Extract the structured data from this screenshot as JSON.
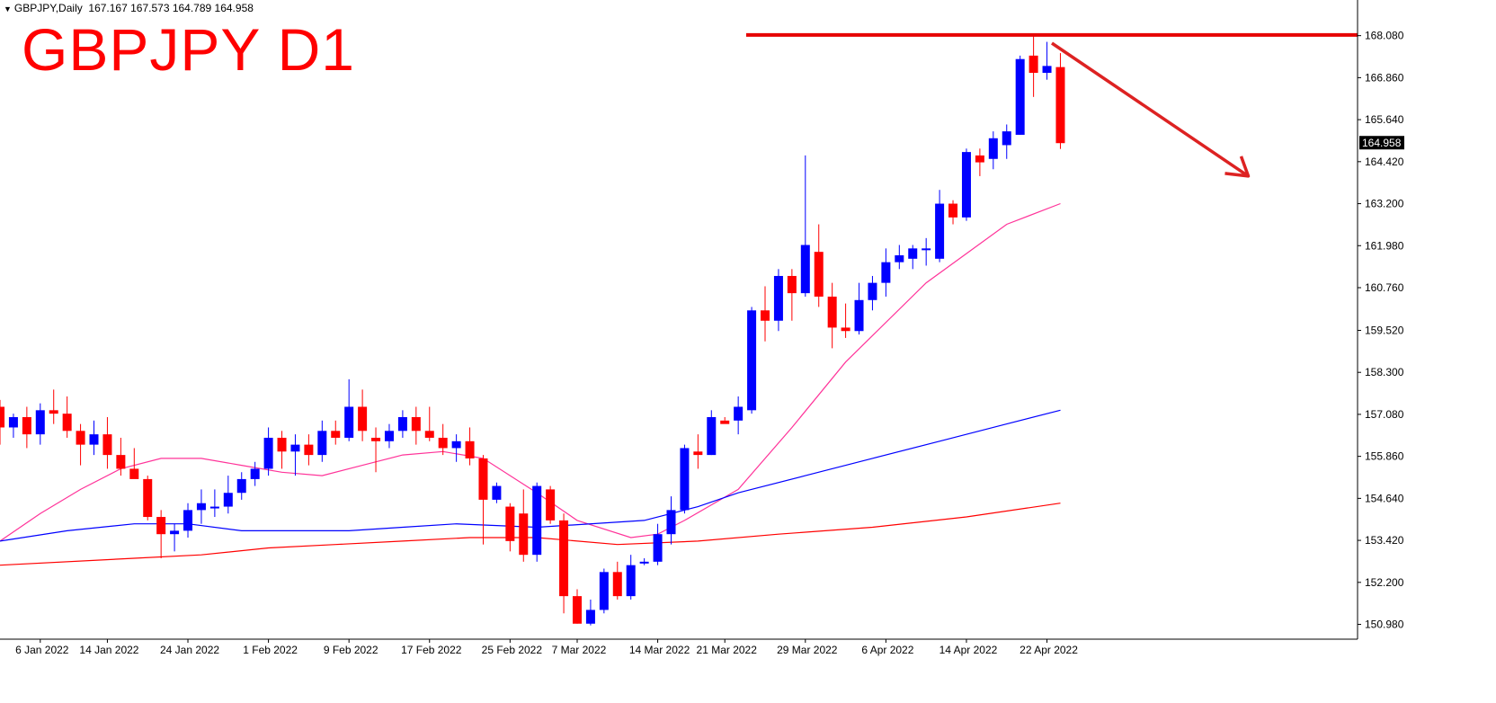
{
  "header": {
    "symbol_timeframe": "GBPJPY,Daily",
    "ohlc": "167.167 167.573 164.789 164.958"
  },
  "title": "GBPJPY D1",
  "colors": {
    "bull": "#0000ff",
    "bear": "#ff0000",
    "ma_fast": "#ff3399",
    "ma_mid": "#0000ff",
    "ma_slow": "#ff0000",
    "annotation": "#e60000"
  },
  "chart_data": {
    "type": "candlestick",
    "title": "GBPJPY D1",
    "xlabel": "",
    "ylabel": "",
    "ylim": [
      150.55,
      168.75
    ],
    "y_ticks": [
      "168.080",
      "166.860",
      "165.640",
      "164.420",
      "163.200",
      "161.980",
      "160.760",
      "159.520",
      "158.300",
      "157.080",
      "155.860",
      "154.640",
      "153.420",
      "152.200",
      "150.980"
    ],
    "x_tick_labels": [
      "6 Jan 2022",
      "14 Jan 2022",
      "24 Jan 2022",
      "1 Feb 2022",
      "9 Feb 2022",
      "17 Feb 2022",
      "25 Feb 2022",
      "7 Mar 2022",
      "14 Mar 2022",
      "21 Mar 2022",
      "29 Mar 2022",
      "6 Apr 2022",
      "14 Apr 2022",
      "22 Apr 2022"
    ],
    "current_price": "164.958",
    "candles": [
      {
        "d": "2022-01-05",
        "o": 157.3,
        "h": 157.5,
        "l": 156.2,
        "c": 156.7
      },
      {
        "d": "2022-01-06",
        "o": 156.7,
        "h": 157.1,
        "l": 156.4,
        "c": 157.0
      },
      {
        "d": "2022-01-07",
        "o": 157.0,
        "h": 157.3,
        "l": 156.1,
        "c": 156.5
      },
      {
        "d": "2022-01-10",
        "o": 156.5,
        "h": 157.4,
        "l": 156.2,
        "c": 157.2
      },
      {
        "d": "2022-01-11",
        "o": 157.2,
        "h": 157.8,
        "l": 156.8,
        "c": 157.1
      },
      {
        "d": "2022-01-12",
        "o": 157.1,
        "h": 157.6,
        "l": 156.4,
        "c": 156.6
      },
      {
        "d": "2022-01-13",
        "o": 156.6,
        "h": 156.8,
        "l": 155.6,
        "c": 156.2
      },
      {
        "d": "2022-01-14",
        "o": 156.2,
        "h": 156.9,
        "l": 155.9,
        "c": 156.5
      },
      {
        "d": "2022-01-17",
        "o": 156.5,
        "h": 157.0,
        "l": 155.5,
        "c": 155.9
      },
      {
        "d": "2022-01-18",
        "o": 155.9,
        "h": 156.4,
        "l": 155.3,
        "c": 155.5
      },
      {
        "d": "2022-01-19",
        "o": 155.5,
        "h": 156.1,
        "l": 155.3,
        "c": 155.2
      },
      {
        "d": "2022-01-20",
        "o": 155.2,
        "h": 155.3,
        "l": 154.0,
        "c": 154.1
      },
      {
        "d": "2022-01-21",
        "o": 154.1,
        "h": 154.3,
        "l": 152.9,
        "c": 153.6
      },
      {
        "d": "2022-01-24",
        "o": 153.6,
        "h": 153.9,
        "l": 153.1,
        "c": 153.7
      },
      {
        "d": "2022-01-25",
        "o": 153.7,
        "h": 154.5,
        "l": 153.5,
        "c": 154.3
      },
      {
        "d": "2022-01-26",
        "o": 154.3,
        "h": 154.9,
        "l": 153.9,
        "c": 154.5
      },
      {
        "d": "2022-01-27",
        "o": 154.4,
        "h": 154.9,
        "l": 154.1,
        "c": 154.4
      },
      {
        "d": "2022-01-28",
        "o": 154.4,
        "h": 155.3,
        "l": 154.2,
        "c": 154.8
      },
      {
        "d": "2022-01-31",
        "o": 154.8,
        "h": 155.4,
        "l": 154.6,
        "c": 155.2
      },
      {
        "d": "2022-02-01",
        "o": 155.2,
        "h": 155.7,
        "l": 155.0,
        "c": 155.5
      },
      {
        "d": "2022-02-02",
        "o": 155.5,
        "h": 156.7,
        "l": 155.3,
        "c": 156.4
      },
      {
        "d": "2022-02-03",
        "o": 156.4,
        "h": 156.6,
        "l": 155.5,
        "c": 156.0
      },
      {
        "d": "2022-02-04",
        "o": 156.0,
        "h": 156.5,
        "l": 155.3,
        "c": 156.2
      },
      {
        "d": "2022-02-07",
        "o": 156.2,
        "h": 156.5,
        "l": 155.6,
        "c": 155.9
      },
      {
        "d": "2022-02-08",
        "o": 155.9,
        "h": 156.9,
        "l": 155.7,
        "c": 156.6
      },
      {
        "d": "2022-02-09",
        "o": 156.6,
        "h": 156.9,
        "l": 156.2,
        "c": 156.4
      },
      {
        "d": "2022-02-10",
        "o": 156.4,
        "h": 158.1,
        "l": 156.3,
        "c": 157.3
      },
      {
        "d": "2022-02-11",
        "o": 157.3,
        "h": 157.8,
        "l": 156.3,
        "c": 156.6
      },
      {
        "d": "2022-02-14",
        "o": 156.4,
        "h": 156.7,
        "l": 155.4,
        "c": 156.3
      },
      {
        "d": "2022-02-15",
        "o": 156.3,
        "h": 156.8,
        "l": 156.1,
        "c": 156.6
      },
      {
        "d": "2022-02-16",
        "o": 156.6,
        "h": 157.2,
        "l": 156.4,
        "c": 157.0
      },
      {
        "d": "2022-02-17",
        "o": 157.0,
        "h": 157.3,
        "l": 156.2,
        "c": 156.6
      },
      {
        "d": "2022-02-18",
        "o": 156.6,
        "h": 157.3,
        "l": 156.3,
        "c": 156.4
      },
      {
        "d": "2022-02-21",
        "o": 156.4,
        "h": 156.8,
        "l": 155.9,
        "c": 156.1
      },
      {
        "d": "2022-02-22",
        "o": 156.1,
        "h": 156.5,
        "l": 155.7,
        "c": 156.3
      },
      {
        "d": "2022-02-23",
        "o": 156.3,
        "h": 156.7,
        "l": 155.6,
        "c": 155.8
      },
      {
        "d": "2022-02-24",
        "o": 155.8,
        "h": 155.9,
        "l": 153.3,
        "c": 154.6
      },
      {
        "d": "2022-02-25",
        "o": 154.6,
        "h": 155.1,
        "l": 154.5,
        "c": 155.0
      },
      {
        "d": "2022-02-28",
        "o": 154.4,
        "h": 154.5,
        "l": 153.1,
        "c": 153.4
      },
      {
        "d": "2022-03-01",
        "o": 154.2,
        "h": 154.9,
        "l": 152.8,
        "c": 153.0
      },
      {
        "d": "2022-03-02",
        "o": 153.0,
        "h": 155.1,
        "l": 152.8,
        "c": 155.0
      },
      {
        "d": "2022-03-03",
        "o": 154.9,
        "h": 155.0,
        "l": 153.9,
        "c": 154.0
      },
      {
        "d": "2022-03-04",
        "o": 154.0,
        "h": 154.2,
        "l": 151.3,
        "c": 151.8
      },
      {
        "d": "2022-03-07",
        "o": 151.8,
        "h": 152.0,
        "l": 151.0,
        "c": 151.0
      },
      {
        "d": "2022-03-08",
        "o": 151.0,
        "h": 151.7,
        "l": 150.95,
        "c": 151.4
      },
      {
        "d": "2022-03-09",
        "o": 151.4,
        "h": 152.6,
        "l": 151.3,
        "c": 152.5
      },
      {
        "d": "2022-03-10",
        "o": 152.5,
        "h": 152.8,
        "l": 151.7,
        "c": 151.8
      },
      {
        "d": "2022-03-11",
        "o": 151.8,
        "h": 153.0,
        "l": 151.7,
        "c": 152.7
      },
      {
        "d": "2022-03-14",
        "o": 152.8,
        "h": 152.9,
        "l": 152.7,
        "c": 152.8
      },
      {
        "d": "2022-03-15",
        "o": 152.8,
        "h": 153.9,
        "l": 152.7,
        "c": 153.6
      },
      {
        "d": "2022-03-16",
        "o": 153.6,
        "h": 154.7,
        "l": 153.3,
        "c": 154.3
      },
      {
        "d": "2022-03-17",
        "o": 154.3,
        "h": 156.2,
        "l": 154.2,
        "c": 156.1
      },
      {
        "d": "2022-03-18",
        "o": 156.0,
        "h": 156.5,
        "l": 155.5,
        "c": 155.9
      },
      {
        "d": "2022-03-21",
        "o": 155.9,
        "h": 157.2,
        "l": 155.9,
        "c": 157.0
      },
      {
        "d": "2022-03-22",
        "o": 156.9,
        "h": 157.0,
        "l": 156.9,
        "c": 156.8
      },
      {
        "d": "2022-03-23",
        "o": 156.9,
        "h": 157.6,
        "l": 156.5,
        "c": 157.3
      },
      {
        "d": "2022-03-24",
        "o": 157.2,
        "h": 160.2,
        "l": 157.1,
        "c": 160.1
      },
      {
        "d": "2022-03-25",
        "o": 160.1,
        "h": 160.8,
        "l": 159.2,
        "c": 159.8
      },
      {
        "d": "2022-03-28",
        "o": 159.8,
        "h": 161.3,
        "l": 159.5,
        "c": 161.1
      },
      {
        "d": "2022-03-29",
        "o": 161.1,
        "h": 161.3,
        "l": 159.8,
        "c": 160.6
      },
      {
        "d": "2022-03-30",
        "o": 160.6,
        "h": 164.6,
        "l": 160.5,
        "c": 162.0
      },
      {
        "d": "2022-03-31",
        "o": 161.8,
        "h": 162.6,
        "l": 160.2,
        "c": 160.5
      },
      {
        "d": "2022-04-01",
        "o": 160.5,
        "h": 160.9,
        "l": 159.0,
        "c": 159.6
      },
      {
        "d": "2022-04-04",
        "o": 159.6,
        "h": 160.3,
        "l": 159.3,
        "c": 159.5
      },
      {
        "d": "2022-04-05",
        "o": 159.5,
        "h": 160.9,
        "l": 159.4,
        "c": 160.4
      },
      {
        "d": "2022-04-06",
        "o": 160.4,
        "h": 161.1,
        "l": 160.1,
        "c": 160.9
      },
      {
        "d": "2022-04-07",
        "o": 160.9,
        "h": 161.9,
        "l": 160.5,
        "c": 161.5
      },
      {
        "d": "2022-04-08",
        "o": 161.5,
        "h": 162.0,
        "l": 161.3,
        "c": 161.7
      },
      {
        "d": "2022-04-11",
        "o": 161.6,
        "h": 162.0,
        "l": 161.3,
        "c": 161.9
      },
      {
        "d": "2022-04-12",
        "o": 161.9,
        "h": 162.2,
        "l": 161.4,
        "c": 161.9
      },
      {
        "d": "2022-04-13",
        "o": 161.6,
        "h": 163.6,
        "l": 161.5,
        "c": 163.2
      },
      {
        "d": "2022-04-14",
        "o": 163.2,
        "h": 163.3,
        "l": 162.6,
        "c": 162.8
      },
      {
        "d": "2022-04-15",
        "o": 162.8,
        "h": 164.8,
        "l": 162.7,
        "c": 164.7
      },
      {
        "d": "2022-04-18",
        "o": 164.6,
        "h": 164.8,
        "l": 164.0,
        "c": 164.4
      },
      {
        "d": "2022-04-19",
        "o": 164.5,
        "h": 165.3,
        "l": 164.2,
        "c": 165.1
      },
      {
        "d": "2022-04-20",
        "o": 164.9,
        "h": 165.5,
        "l": 164.5,
        "c": 165.3
      },
      {
        "d": "2022-04-21",
        "o": 165.2,
        "h": 167.5,
        "l": 165.2,
        "c": 167.4
      },
      {
        "d": "2022-04-22",
        "o": 167.5,
        "h": 168.1,
        "l": 166.3,
        "c": 167.0
      },
      {
        "d": "2022-04-25",
        "o": 167.0,
        "h": 167.9,
        "l": 166.8,
        "c": 167.2
      },
      {
        "d": "2022-04-26",
        "o": 167.167,
        "h": 167.573,
        "l": 164.789,
        "c": 164.958
      }
    ],
    "ma_series": [
      {
        "color": "#ff3399",
        "values": [
          153.4,
          154.2,
          154.9,
          155.5,
          155.8,
          155.8,
          155.6,
          155.4,
          155.3,
          155.6,
          155.9,
          156.0,
          155.8,
          154.8,
          154.0,
          153.5,
          153.6,
          154.0,
          154.9,
          156.7,
          158.6,
          160.9,
          162.6,
          163.2
        ],
        "index": [
          0,
          3,
          6,
          9,
          12,
          15,
          18,
          21,
          24,
          27,
          30,
          33,
          36,
          40,
          43,
          47,
          49,
          51,
          55,
          59,
          63,
          69,
          75,
          79
        ]
      },
      {
        "color": "#0000ff",
        "values": [
          153.4,
          153.7,
          153.9,
          153.9,
          153.7,
          153.7,
          153.7,
          153.8,
          153.9,
          153.8,
          154.0,
          154.4,
          154.8,
          155.3,
          155.8,
          156.3,
          156.8,
          157.2
        ],
        "index": [
          0,
          5,
          10,
          14,
          18,
          22,
          26,
          30,
          34,
          40,
          48,
          52,
          55,
          60,
          65,
          70,
          75,
          79
        ]
      },
      {
        "color": "#ff0000",
        "values": [
          152.7,
          152.9,
          153.0,
          153.2,
          153.3,
          153.4,
          153.5,
          153.5,
          153.3,
          153.4,
          153.6,
          153.8,
          154.1,
          154.5
        ],
        "index": [
          0,
          10,
          15,
          20,
          25,
          30,
          35,
          40,
          46,
          52,
          58,
          65,
          72,
          79
        ]
      }
    ],
    "resistance": 168.1,
    "arrow": {
      "from_index": 79,
      "from_price": 168.1,
      "to_index": 93,
      "to_price": 164.0
    }
  }
}
